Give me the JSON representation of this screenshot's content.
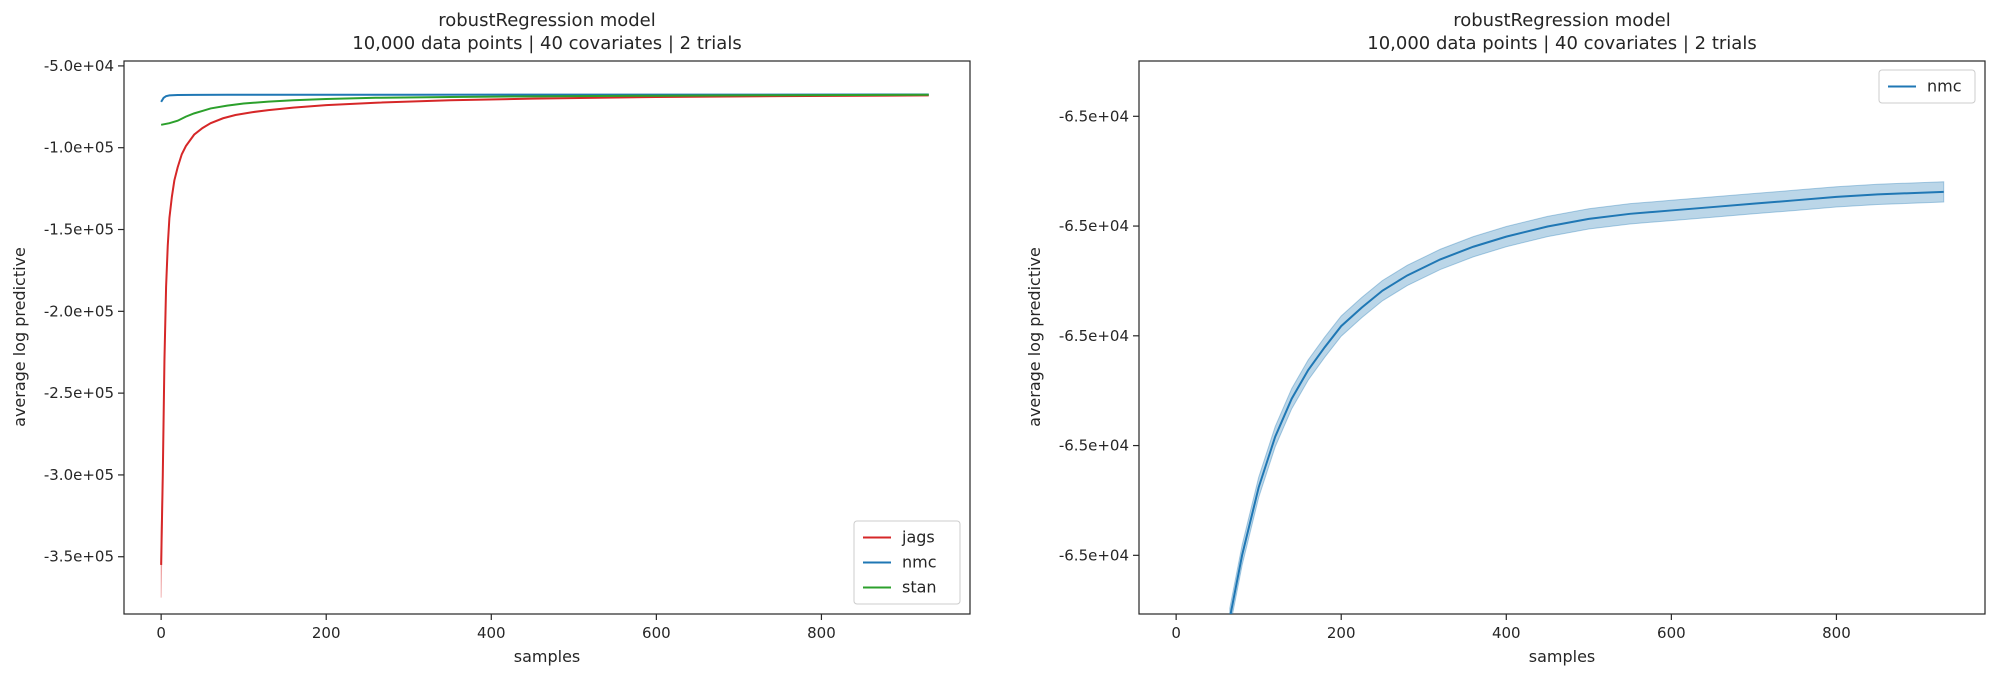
{
  "chart_data": [
    {
      "type": "line",
      "title": "robustRegression model",
      "subtitle": "10,000 data points | 40 covariates | 2 trials",
      "xlabel": "samples",
      "ylabel": "average log predictive",
      "xlim": [
        -45,
        980
      ],
      "ylim": [
        -385000,
        -47000
      ],
      "xticks": [
        0,
        200,
        400,
        600,
        800
      ],
      "xtick_labels": [
        "0",
        "200",
        "400",
        "600",
        "800"
      ],
      "yticks": [
        -50000,
        -100000,
        -150000,
        -200000,
        -250000,
        -300000,
        -350000
      ],
      "ytick_labels": [
        "-5.0e+04",
        "-1.0e+05",
        "-1.5e+05",
        "-2.0e+05",
        "-2.5e+05",
        "-3.0e+05",
        "-3.5e+05"
      ],
      "legend_position": "lower-right",
      "series": [
        {
          "name": "jags",
          "color": "#d62728",
          "x": [
            0,
            2,
            4,
            6,
            8,
            10,
            13,
            16,
            20,
            25,
            30,
            40,
            50,
            60,
            75,
            90,
            110,
            130,
            160,
            200,
            260,
            350,
            450,
            600,
            750,
            930
          ],
          "y": [
            -355000,
            -300000,
            -230000,
            -185000,
            -160000,
            -143000,
            -130000,
            -120000,
            -112000,
            -104000,
            -99000,
            -92000,
            -88000,
            -85000,
            -82000,
            -80000,
            -78300,
            -77000,
            -75500,
            -74000,
            -72500,
            -71000,
            -70000,
            -69000,
            -68500,
            -68000
          ],
          "band_low": [
            -375000,
            -305000,
            -233000,
            -187000,
            -161000,
            -144000,
            -130500,
            -120400,
            -112300,
            -104200,
            -99100,
            -92100,
            -88050,
            -85050,
            -82030,
            -80020,
            -78310,
            -77005,
            -75503,
            -74002,
            -72501,
            -71000,
            -70000,
            -69000,
            -68500,
            -68000
          ],
          "band_high": [
            -335000,
            -295000,
            -227000,
            -183000,
            -159000,
            -142000,
            -129500,
            -119600,
            -111700,
            -103800,
            -98900,
            -91900,
            -87950,
            -84950,
            -81970,
            -79980,
            -78290,
            -76995,
            -75497,
            -73998,
            -72499,
            -71000,
            -70000,
            -69000,
            -68500,
            -68000
          ]
        },
        {
          "name": "nmc",
          "color": "#1f77b4",
          "x": [
            0,
            3,
            6,
            10,
            20,
            40,
            80,
            150,
            300,
            500,
            700,
            930
          ],
          "y": [
            -72000,
            -69500,
            -68500,
            -68000,
            -67800,
            -67700,
            -67650,
            -67600,
            -67600,
            -67550,
            -67550,
            -67500
          ]
        },
        {
          "name": "stan",
          "color": "#2ca02c",
          "x": [
            0,
            10,
            20,
            30,
            40,
            50,
            60,
            80,
            100,
            130,
            160,
            200,
            260,
            350,
            450,
            600,
            750,
            930
          ],
          "y": [
            -86000,
            -85000,
            -83500,
            -81000,
            -79000,
            -77500,
            -76000,
            -74300,
            -73000,
            -71800,
            -71000,
            -70200,
            -69500,
            -69000,
            -68600,
            -68200,
            -67900,
            -67600
          ]
        }
      ]
    },
    {
      "type": "line",
      "title": "robustRegression model",
      "subtitle": "10,000 data points | 40 covariates | 2 trials",
      "xlabel": "samples",
      "ylabel": "average log predictive",
      "xlim": [
        -45,
        980
      ],
      "ylim": [
        -65.5,
        0
      ],
      "xticks": [
        0,
        200,
        400,
        600,
        800
      ],
      "xtick_labels": [
        "0",
        "200",
        "400",
        "600",
        "800"
      ],
      "yticks": [
        -6.55,
        -19.55,
        -32.55,
        -45.55,
        -58.55
      ],
      "ytick_labels": [
        "-6.5e+04",
        "-6.5e+04",
        "-6.5e+04",
        "-6.5e+04",
        "-6.5e+04"
      ],
      "legend_position": "upper-right",
      "series": [
        {
          "name": "nmc",
          "color": "#1f77b4",
          "x": [
            65,
            80,
            100,
            120,
            140,
            160,
            180,
            200,
            225,
            250,
            280,
            320,
            360,
            400,
            450,
            500,
            550,
            600,
            650,
            700,
            750,
            800,
            850,
            930
          ],
          "y": [
            -66,
            -58.5,
            -50.5,
            -44.5,
            -40,
            -36.6,
            -33.9,
            -31.4,
            -29.2,
            -27.2,
            -25.4,
            -23.5,
            -22,
            -20.8,
            -19.6,
            -18.7,
            -18.1,
            -17.7,
            -17.3,
            -16.9,
            -16.5,
            -16.1,
            -15.8,
            -15.5
          ],
          "band_width": 1.2
        }
      ]
    }
  ]
}
